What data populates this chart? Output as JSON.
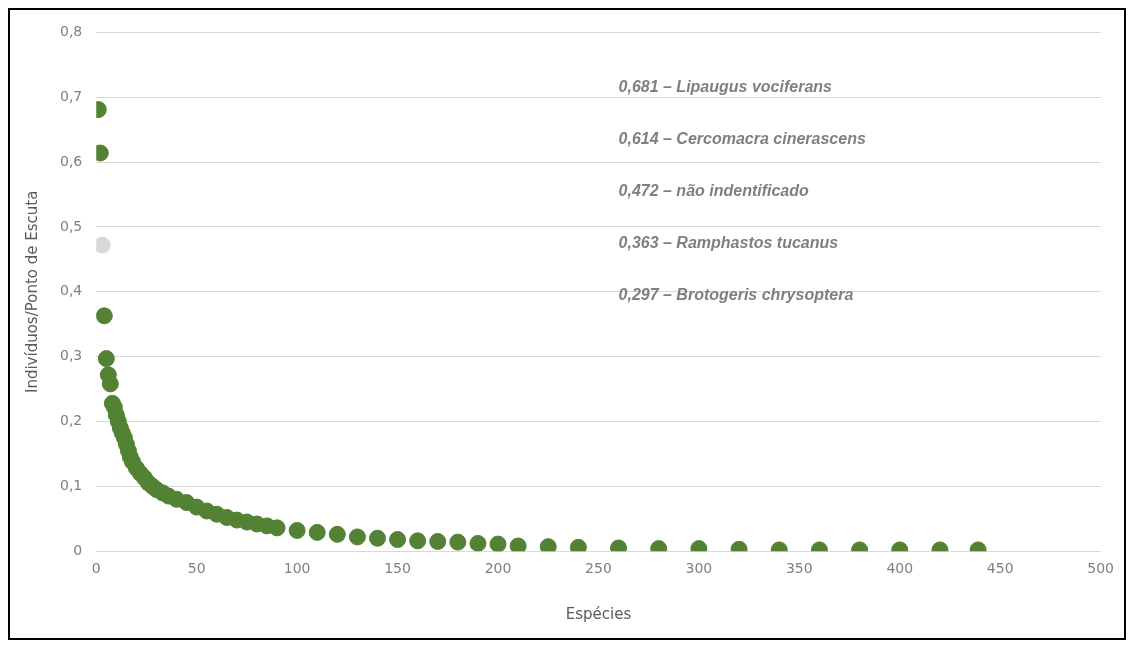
{
  "chart_data": {
    "type": "scatter",
    "xlabel": "Espécies",
    "ylabel": "Indivíduos/Ponto de Escuta",
    "x": [
      1,
      2,
      3,
      4,
      5,
      6,
      7,
      8,
      9,
      10,
      11,
      12,
      13,
      14,
      15,
      16,
      17,
      18,
      20,
      22,
      24,
      26,
      28,
      30,
      33,
      36,
      40,
      45,
      50,
      55,
      60,
      65,
      70,
      75,
      80,
      85,
      90,
      100,
      110,
      120,
      130,
      140,
      150,
      160,
      170,
      180,
      190,
      200,
      210,
      225,
      240,
      260,
      280,
      300,
      320,
      340,
      360,
      380,
      400,
      420,
      439
    ],
    "series": [
      {
        "colors": [
          "#548235",
          "#548235",
          "#d9d9d9",
          "#548235",
          "#548235",
          "#548235",
          "#548235",
          "#548235",
          "#548235",
          "#548235",
          "#548235",
          "#548235",
          "#548235",
          "#548235",
          "#548235",
          "#548235",
          "#548235",
          "#548235",
          "#548235",
          "#548235",
          "#548235",
          "#548235",
          "#548235",
          "#548235",
          "#548235",
          "#548235",
          "#548235",
          "#548235",
          "#548235",
          "#548235",
          "#548235",
          "#548235",
          "#548235",
          "#548235",
          "#548235",
          "#548235",
          "#548235",
          "#548235",
          "#548235",
          "#548235",
          "#548235",
          "#548235",
          "#548235",
          "#548235",
          "#548235",
          "#548235",
          "#548235",
          "#548235",
          "#548235",
          "#548235",
          "#548235",
          "#548235",
          "#548235",
          "#548235",
          "#548235",
          "#548235",
          "#548235",
          "#548235",
          "#548235",
          "#548235",
          "#548235"
        ],
        "values": [
          0.681,
          0.614,
          0.472,
          0.363,
          0.297,
          0.272,
          0.258,
          0.228,
          0.222,
          0.21,
          0.2,
          0.19,
          0.182,
          0.175,
          0.165,
          0.155,
          0.145,
          0.138,
          0.128,
          0.12,
          0.113,
          0.105,
          0.1,
          0.095,
          0.09,
          0.085,
          0.08,
          0.075,
          0.068,
          0.062,
          0.057,
          0.052,
          0.048,
          0.045,
          0.042,
          0.039,
          0.036,
          0.032,
          0.029,
          0.026,
          0.022,
          0.02,
          0.018,
          0.016,
          0.015,
          0.014,
          0.012,
          0.011,
          0.008,
          0.007,
          0.006,
          0.005,
          0.004,
          0.004,
          0.003,
          0.002,
          0.002,
          0.002,
          0.002,
          0.002,
          0.002
        ]
      }
    ],
    "xlim": [
      0,
      500
    ],
    "xticks": [
      0,
      50,
      100,
      150,
      200,
      250,
      300,
      350,
      400,
      450,
      500
    ],
    "ylim": [
      0,
      0.8
    ],
    "yticks": [
      {
        "value": 0,
        "label": "0"
      },
      {
        "value": 0.1,
        "label": "0,1"
      },
      {
        "value": 0.2,
        "label": "0,2"
      },
      {
        "value": 0.3,
        "label": "0,3"
      },
      {
        "value": 0.4,
        "label": "0,4"
      },
      {
        "value": 0.5,
        "label": "0,5"
      },
      {
        "value": 0.6,
        "label": "0,6"
      },
      {
        "value": 0.7,
        "label": "0,7"
      },
      {
        "value": 0.8,
        "label": "0,8"
      }
    ],
    "grid": "y",
    "marker": "circle",
    "legend": false,
    "annotations": [
      "0,681 – Lipaugus vociferans",
      "0,614 – Cercomacra cinerascens",
      "0,472 – não indentificado",
      "0,363 – Ramphastos tucanus",
      "0,297 – Brotogeris chrysoptera"
    ]
  }
}
